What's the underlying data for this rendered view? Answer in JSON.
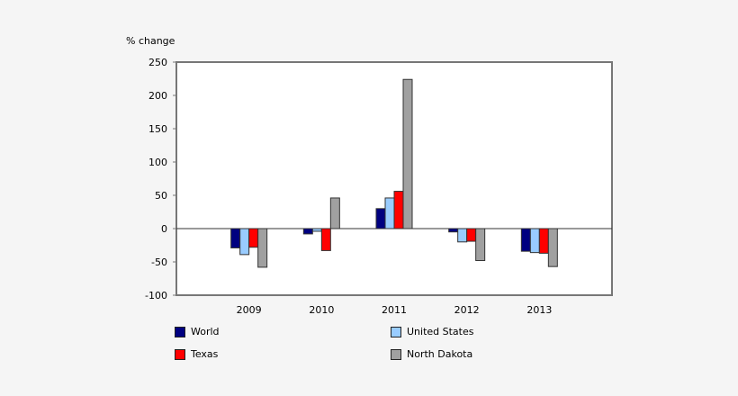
{
  "chart_data": {
    "type": "bar",
    "ylabel": "% change",
    "ylim": [
      -100,
      250
    ],
    "yticks": [
      250,
      200,
      150,
      100,
      50,
      0,
      -50,
      -100
    ],
    "grid": false,
    "legend_position": "bottom",
    "categories": [
      "2009",
      "2010",
      "2011",
      "2012",
      "2013"
    ],
    "series": [
      {
        "name": "World",
        "color": "#000080",
        "values": [
          -29,
          -8,
          30,
          -5,
          -34
        ]
      },
      {
        "name": "United States",
        "color": "#99ccff",
        "values": [
          -39,
          -4,
          46,
          -20,
          -36
        ]
      },
      {
        "name": "Texas",
        "color": "#ff0000",
        "values": [
          -28,
          -33,
          56,
          -19,
          -37
        ]
      },
      {
        "name": "North Dakota",
        "color": "#a0a0a0",
        "values": [
          -58,
          46,
          224,
          -48,
          -57
        ]
      }
    ]
  }
}
